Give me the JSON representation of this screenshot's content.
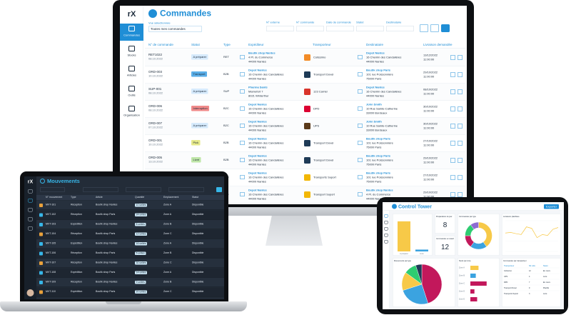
{
  "monitor": {
    "logo": "rX",
    "menu": [
      "Commandes",
      "Stocks",
      "Articles",
      "Outils",
      "Organisation"
    ],
    "title": "Commandes",
    "filter_label": "Vue sélectionnée",
    "filter_value": "Toutes mes commandes",
    "search_fields": [
      "N° externe",
      "N° commande",
      "Date de commande",
      "Statut",
      "Destinataire"
    ],
    "columns": [
      "N° de commande",
      "Statut",
      "Type",
      "Expéditeur",
      "Transporteur",
      "Destinataire",
      "Livraison demandée"
    ],
    "rows": [
      {
        "id": "RET1022",
        "date": "08.10.2022",
        "status": "A préparer",
        "status_color": "#d6eafc",
        "type": "RET",
        "sender": [
          "Boutik shop Nantes",
          "4 Pl. du Commerce",
          "44000 Nantes"
        ],
        "carrier": "Colissimo",
        "carrier_color": "#f28c28",
        "recipient": [
          "Depot Nantes",
          "16 Chemin des Candalières",
          "44000 Nantes"
        ],
        "delivery": [
          "13/12/2022",
          "11:00:00"
        ]
      },
      {
        "id": "ORD-003",
        "date": "10.10.2022",
        "status": "Transport",
        "status_color": "#5aaee8",
        "type": "B2B",
        "sender": [
          "Depot Nantes",
          "16 Chemin des Candalières",
          "44000 Nantes"
        ],
        "carrier": "Transport Dovel",
        "carrier_color": "#1f3b57",
        "recipient": [
          "Boutik shop Paris",
          "101 rue Poissonnière",
          "75000 Paris"
        ],
        "delivery": [
          "29/10/2022",
          "11:00:00"
        ]
      },
      {
        "id": "SUP-001",
        "date": "08.10.2022",
        "status": "A préparer",
        "status_color": "#d6eafc",
        "type": "SUP",
        "sender": [
          "Pharma Santé",
          "Marnefort 7",
          "8021 Winterthur"
        ],
        "carrier": "123 Carrier",
        "carrier_color": "#d9342b",
        "recipient": [
          "Depot Nantes",
          "16 Chemin des Candalières",
          "44000 Nantes"
        ],
        "delivery": [
          "08/10/2022",
          "11:00:00"
        ]
      },
      {
        "id": "ORD-006",
        "date": "08.10.2022",
        "status": "Interruption",
        "status_color": "#f08a8a",
        "type": "B2C",
        "sender": [
          "Depot Nantes",
          "16 Chemin des Candalières",
          "44000 Nantes"
        ],
        "carrier": "DPD",
        "carrier_color": "#dc0032",
        "recipient": [
          "John Smith",
          "10 Rue Sainte-Catherine",
          "33000 Bordeaux"
        ],
        "delivery": [
          "30/10/2022",
          "11:00:00"
        ]
      },
      {
        "id": "ORD-007",
        "date": "07.10.2022",
        "status": "A préparer",
        "status_color": "#d6eafc",
        "type": "B2C",
        "sender": [
          "Depot Nantes",
          "16 Chemin des Candalières",
          "44000 Nantes"
        ],
        "carrier": "UPS",
        "carrier_color": "#5b3a1a",
        "recipient": [
          "John Smith",
          "10 Rue Sainte-Catherine",
          "33000 Bordeaux"
        ],
        "delivery": [
          "30/10/2022",
          "11:00:00"
        ]
      },
      {
        "id": "ORD-001",
        "date": "10.10.2022",
        "status": "Pick",
        "status_color": "#e6e98a",
        "type": "B2B",
        "sender": [
          "Depot Nantes",
          "16 Chemin des Candalières",
          "44000 Nantes"
        ],
        "carrier": "Transport Dovel",
        "carrier_color": "#1f3b57",
        "recipient": [
          "Boutik shop Paris",
          "101 rue Poissonnière",
          "75000 Paris"
        ],
        "delivery": [
          "27/10/2022",
          "11:00:00"
        ]
      },
      {
        "id": "ORD-005",
        "date": "13.10.2022",
        "status": "Livré",
        "status_color": "#bfe6a8",
        "type": "B2B",
        "sender": [
          "Depot Nantes",
          "16 Chemin des Candalières",
          "44000 Nantes"
        ],
        "carrier": "Transport Dovel",
        "carrier_color": "#1f3b57",
        "recipient": [
          "Boutik shop Paris",
          "101 rue Poissonnière",
          "75000 Paris"
        ],
        "delivery": [
          "29/10/2022",
          "11:00:00"
        ]
      },
      {
        "id": "ORD-004",
        "date": "12.10.2022",
        "status": "Annulé",
        "status_color": "#c9c9c9",
        "type": "B2B",
        "sender": [
          "Depot Nantes",
          "16 Chemin des Candalières",
          "44000 Nantes"
        ],
        "carrier": "Transports Suport",
        "carrier_color": "#f2b705",
        "recipient": [
          "Boutik shop Paris",
          "101 rue Poissonnière",
          "75000 Paris"
        ],
        "delivery": [
          "27/10/2022",
          "11:00:00"
        ]
      },
      {
        "id": "ORD-002",
        "date": "10.10.2022",
        "status": "Préparation",
        "status_color": "#8cc8f2",
        "type": "B2B",
        "sender": [
          "Depot Nantes",
          "16 Chemin des Candalières",
          "44000 Nantes"
        ],
        "carrier": "Transport Suport",
        "carrier_color": "#f2b705",
        "recipient": [
          "Boutik shop Nantes",
          "4 Pl. du Commerce",
          "44000 Nantes"
        ],
        "delivery": [
          "29/10/2022",
          "11:00:00"
        ]
      }
    ]
  },
  "laptop": {
    "logo": "rX",
    "title": "Mouvements",
    "columns": [
      "N° mouvement",
      "Type",
      "Article",
      "Quantité",
      "Emplacement",
      "Statut"
    ],
    "rows": [
      [
        "MVT-101",
        "Réception",
        "Boutik shop Nantes",
        "10 unités",
        "Zone A",
        "Disponible"
      ],
      [
        "MVT-102",
        "Réception",
        "Boutik shop Paris",
        "24 unités",
        "Zone A",
        "Disponible"
      ],
      [
        "MVT-103",
        "Expédition",
        "Boutik shop Nantes",
        "8 unités",
        "Zone B",
        "Disponible"
      ],
      [
        "MVT-104",
        "Réception",
        "Boutik shop Paris",
        "12 unités",
        "Zone C",
        "Disponible"
      ],
      [
        "MVT-105",
        "Expédition",
        "Boutik shop Nantes",
        "16 unités",
        "Zone A",
        "Disponible"
      ],
      [
        "MVT-106",
        "Réception",
        "Boutik shop Paris",
        "5 unités",
        "Zone B",
        "Disponible"
      ],
      [
        "MVT-107",
        "Réception",
        "Boutik shop Nantes",
        "30 unités",
        "Zone C",
        "Disponible"
      ],
      [
        "MVT-108",
        "Expédition",
        "Boutik shop Paris",
        "14 unités",
        "Zone A",
        "Disponible"
      ],
      [
        "MVT-109",
        "Réception",
        "Boutik shop Nantes",
        "9 unités",
        "Zone B",
        "Disponible"
      ],
      [
        "MVT-110",
        "Expédition",
        "Boutik shop Paris",
        "20 unités",
        "Zone C",
        "Disponible"
      ]
    ]
  },
  "tablet": {
    "title": "Control Tower",
    "button": "Exporter",
    "bar": {
      "title": "Commandes par statut",
      "categories": [
        "A préparer",
        "Livré"
      ],
      "values": [
        98,
        6
      ],
      "colors": [
        "#f7c948",
        "#3ba3e0"
      ],
      "ylim": [
        0,
        100
      ]
    },
    "kpis": [
      {
        "label": "Préparations du jour",
        "value": "8"
      },
      {
        "label": "Commandes en retard",
        "value": "12"
      }
    ],
    "donut": {
      "title": "Commandes par type",
      "values": [
        40,
        20,
        15,
        15,
        10
      ],
      "colors": [
        "#f7c948",
        "#3ba3e0",
        "#c2185b",
        "#2ecc71",
        "#8e6bd1"
      ]
    },
    "line": {
      "title": "Livraisons planifiées",
      "values": [
        60,
        62,
        58,
        55,
        80,
        75,
        45,
        55,
        52,
        72,
        78
      ],
      "ylim": [
        0,
        100
      ],
      "color": "#f7c948"
    },
    "pie": {
      "title": "Mouvements par type",
      "values": [
        45,
        25,
        15,
        10,
        5
      ],
      "colors": [
        "#c2185b",
        "#3ba3e0",
        "#f7c948",
        "#2ecc71",
        "#1f3b57"
      ]
    },
    "hbar": {
      "title": "Stock par zone",
      "categories": [
        "Zone A",
        "Zone B",
        "Zone C",
        "Zone D",
        "Zone E"
      ],
      "values": [
        30,
        20,
        60,
        15,
        25
      ],
      "xlim": [
        0,
        100
      ],
      "colors": [
        "#f7c948",
        "#3ba3e0",
        "#c2185b",
        "#c2185b",
        "#c2185b"
      ]
    },
    "table": {
      "title": "Commandes par transporteur",
      "columns": [
        "Transporteur",
        "Nb colis",
        "Statut"
      ],
      "rows": [
        [
          "Colissimo",
          "12",
          "En cours"
        ],
        [
          "UPS",
          "4",
          "Livré"
        ],
        [
          "DPD",
          "7",
          "En cours"
        ],
        [
          "Transport Dovel",
          "9",
          "Planifié"
        ],
        [
          "Transports Suport",
          "3",
          "Livré"
        ]
      ]
    }
  }
}
